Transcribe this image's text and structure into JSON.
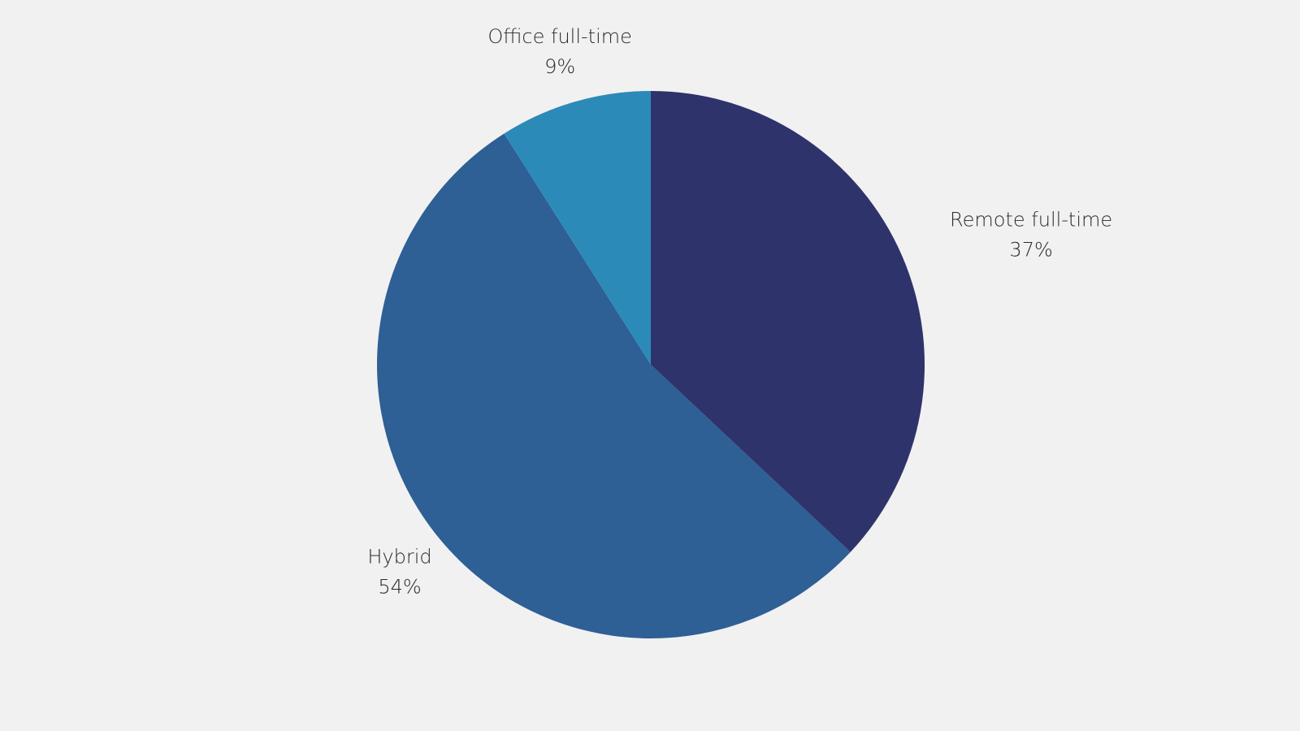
{
  "chart_data": {
    "type": "pie",
    "categories": [
      "Remote full-time",
      "Hybrid",
      "Office full-time"
    ],
    "values": [
      37,
      54,
      9
    ],
    "value_labels": [
      "37%",
      "54%",
      "9%"
    ],
    "colors": [
      "#2f336b",
      "#2e5f95",
      "#2b8ab8"
    ]
  }
}
